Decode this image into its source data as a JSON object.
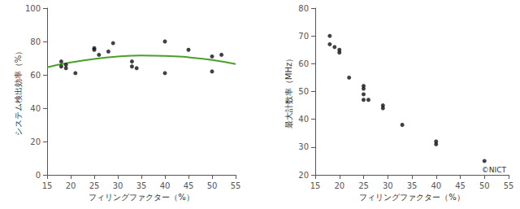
{
  "chart_data": [
    {
      "type": "scatter",
      "xlabel": "フィリングファクター（%）",
      "ylabel": "システム検出効率（%）",
      "xlim": [
        15,
        55
      ],
      "ylim": [
        0,
        100
      ],
      "xticks": [
        15,
        20,
        25,
        30,
        35,
        40,
        45,
        50,
        55
      ],
      "yticks": [
        0,
        20,
        40,
        60,
        80,
        100
      ],
      "grid": false,
      "series": [
        {
          "type": "scatter",
          "color": "#111111",
          "x": [
            18,
            18,
            19,
            19,
            21,
            25,
            25,
            26,
            28,
            29,
            33,
            33,
            34,
            40,
            40,
            45,
            50,
            50,
            52
          ],
          "values": [
            68,
            65,
            66,
            64,
            61,
            75,
            76,
            72,
            74,
            79,
            68,
            65,
            64,
            61,
            80,
            75,
            62,
            71,
            72
          ]
        },
        {
          "type": "line",
          "color": "#4a9e2a",
          "x": [
            15,
            20,
            25,
            30,
            35,
            40,
            45,
            50,
            55
          ],
          "values": [
            64.56,
            67.43,
            69.55,
            70.92,
            71.54,
            71.4,
            70.52,
            68.89,
            66.5
          ]
        }
      ]
    },
    {
      "type": "scatter",
      "xlabel": "フィリングファクター（%）",
      "ylabel": "最大計数率（MHz）",
      "xlim": [
        15,
        55
      ],
      "ylim": [
        20,
        80
      ],
      "xticks": [
        15,
        20,
        25,
        30,
        35,
        40,
        45,
        50,
        55
      ],
      "yticks": [
        20,
        30,
        40,
        50,
        60,
        70,
        80
      ],
      "grid": false,
      "annotation": "©NICT",
      "series": [
        {
          "type": "scatter",
          "color": "#111111",
          "x": [
            18,
            18,
            19,
            20,
            20,
            22,
            25,
            25,
            25,
            25,
            26,
            29,
            29,
            33,
            40,
            40,
            50
          ],
          "values": [
            67,
            70,
            66,
            65,
            64,
            55,
            52,
            51,
            49,
            47,
            47,
            45,
            44,
            38,
            32,
            31,
            25
          ]
        }
      ]
    }
  ]
}
